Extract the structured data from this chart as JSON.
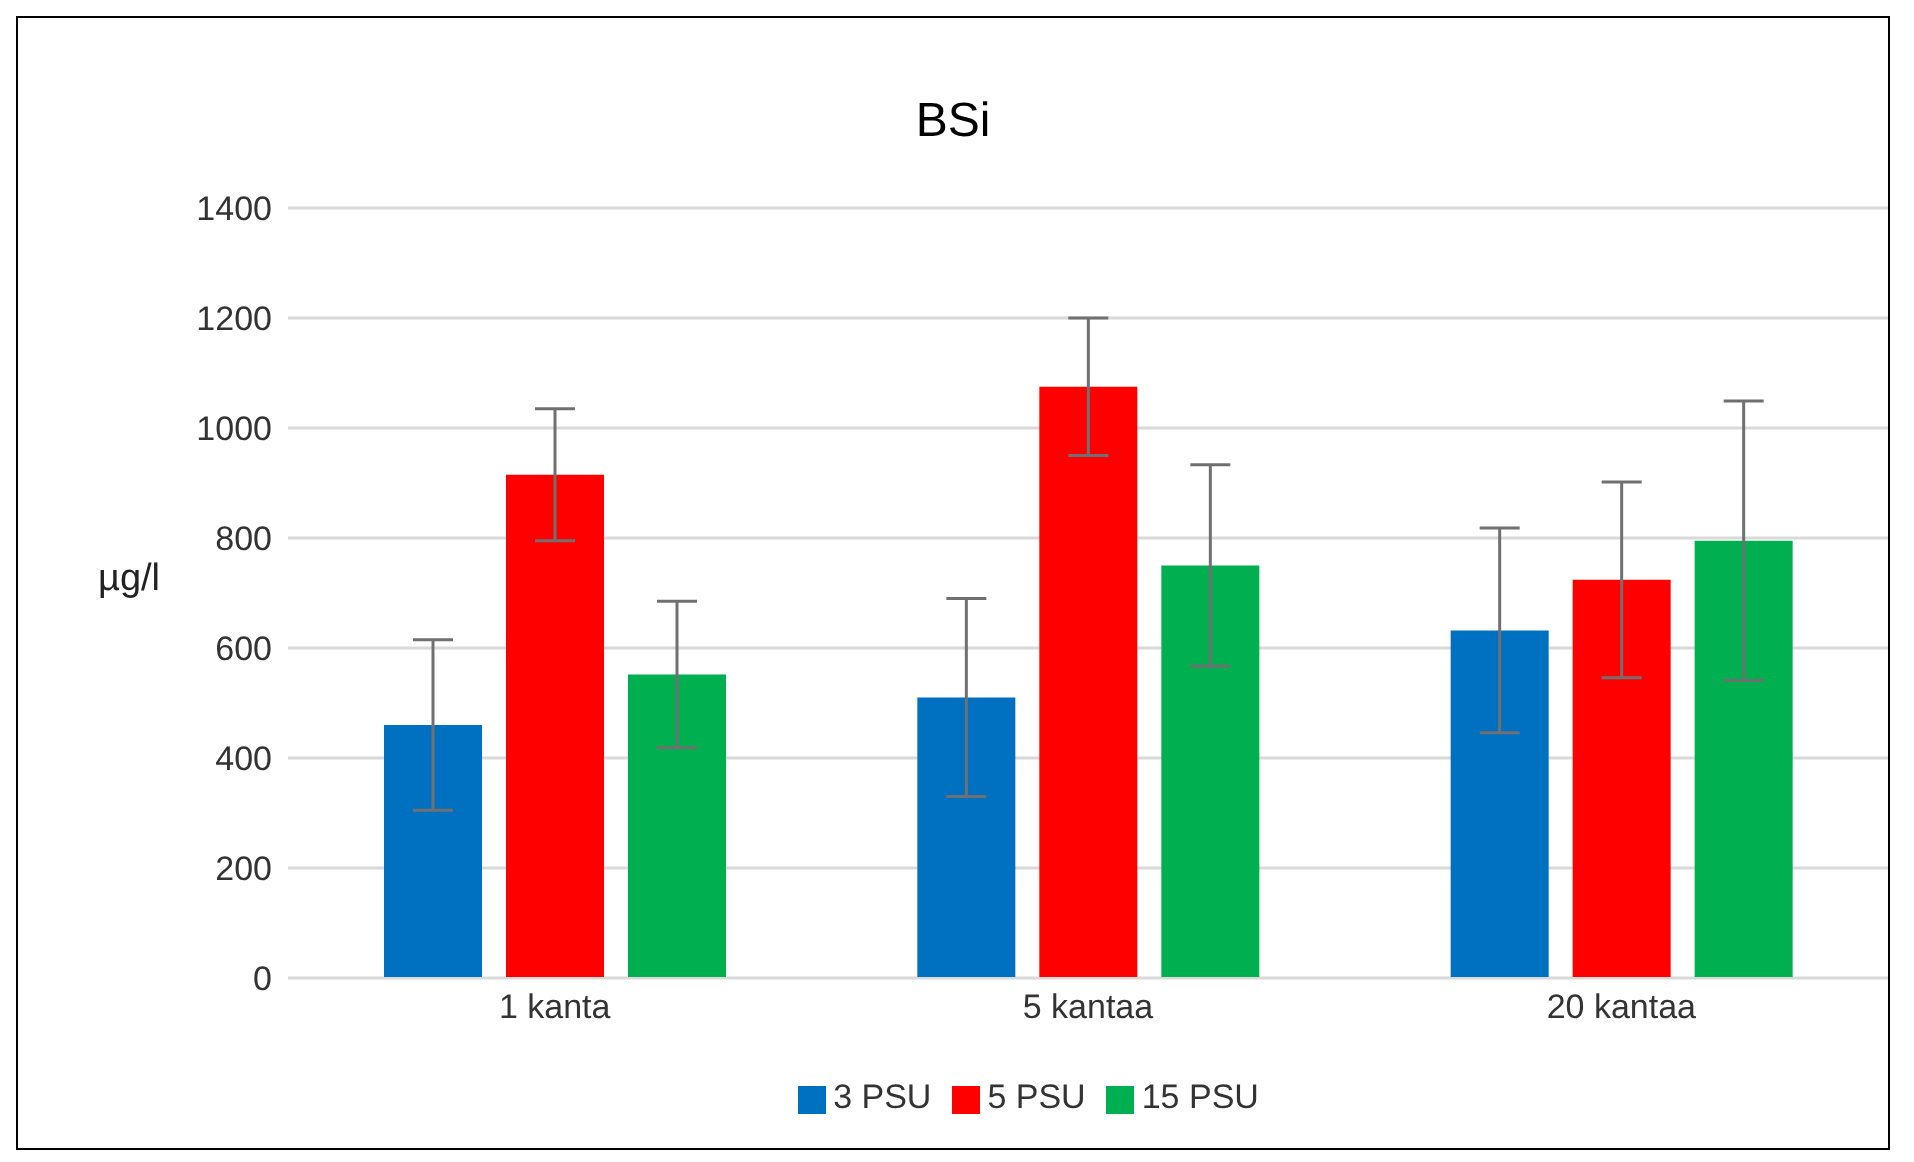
{
  "chart_data": {
    "type": "bar",
    "title": "BSi",
    "ylabel": "µg/l",
    "categories": [
      "1 kanta",
      "5 kantaa",
      "20 kantaa"
    ],
    "series": [
      {
        "name": "3 PSU",
        "color": "#0070c0",
        "values": [
          460,
          510,
          632
        ],
        "errors": [
          155,
          180,
          186
        ]
      },
      {
        "name": "5 PSU",
        "color": "#ff0000",
        "values": [
          915,
          1075,
          724
        ],
        "errors": [
          120,
          125,
          178
        ]
      },
      {
        "name": "15 PSU",
        "color": "#00b050",
        "values": [
          552,
          750,
          795
        ],
        "errors": [
          133,
          183,
          254
        ]
      }
    ],
    "ylim": [
      0,
      1400
    ],
    "yticks": [
      0,
      200,
      400,
      600,
      800,
      1000,
      1200,
      1400
    ],
    "grid": "y",
    "legend": "bottom"
  }
}
